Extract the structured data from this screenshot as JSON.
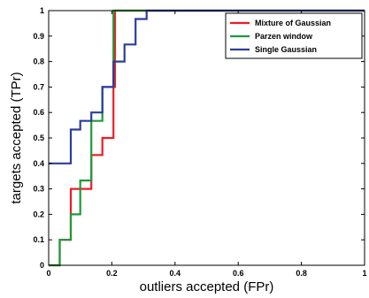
{
  "chart_data": {
    "type": "line",
    "xlabel": "outliers accepted (FPr)",
    "ylabel": "targets accepted (TPr)",
    "xlim": [
      0,
      1
    ],
    "ylim": [
      0,
      1
    ],
    "xticks": [
      "0",
      "0.2",
      "0.4",
      "0.6",
      "0.8",
      "1"
    ],
    "yticks": [
      "0",
      "0.1",
      "0.2",
      "0.3",
      "0.4",
      "0.5",
      "0.6",
      "0.7",
      "0.8",
      "0.9",
      "1"
    ],
    "grid": false,
    "legend_position": "top-right",
    "step": true,
    "series": [
      {
        "name": "Mixture of Gaussian",
        "color": "#ee1c24",
        "x": [
          0,
          0.035,
          0.035,
          0.07,
          0.07,
          0.135,
          0.135,
          0.17,
          0.17,
          0.205,
          0.205,
          0.21,
          0.21,
          1
        ],
        "y": [
          0,
          0,
          0.1,
          0.1,
          0.3,
          0.3,
          0.433,
          0.433,
          0.5,
          0.5,
          0.7,
          0.7,
          1,
          1
        ]
      },
      {
        "name": "Parzen window",
        "color": "#1f9a3c",
        "x": [
          0,
          0.035,
          0.035,
          0.07,
          0.07,
          0.1,
          0.1,
          0.135,
          0.135,
          0.17,
          0.17,
          0.205,
          0.205,
          0.28,
          0.28,
          1
        ],
        "y": [
          0,
          0,
          0.1,
          0.1,
          0.2,
          0.2,
          0.333,
          0.333,
          0.567,
          0.567,
          0.7,
          0.7,
          1,
          1,
          1,
          1
        ]
      },
      {
        "name": "Single Gaussian",
        "color": "#2a3e9c",
        "x": [
          0,
          0.07,
          0.07,
          0.1,
          0.1,
          0.135,
          0.135,
          0.17,
          0.17,
          0.205,
          0.205,
          0.24,
          0.24,
          0.275,
          0.275,
          0.31,
          0.31,
          1
        ],
        "y": [
          0.4,
          0.4,
          0.533,
          0.533,
          0.567,
          0.567,
          0.6,
          0.6,
          0.7,
          0.7,
          0.8,
          0.8,
          0.867,
          0.867,
          0.967,
          0.967,
          1,
          1
        ]
      }
    ]
  }
}
